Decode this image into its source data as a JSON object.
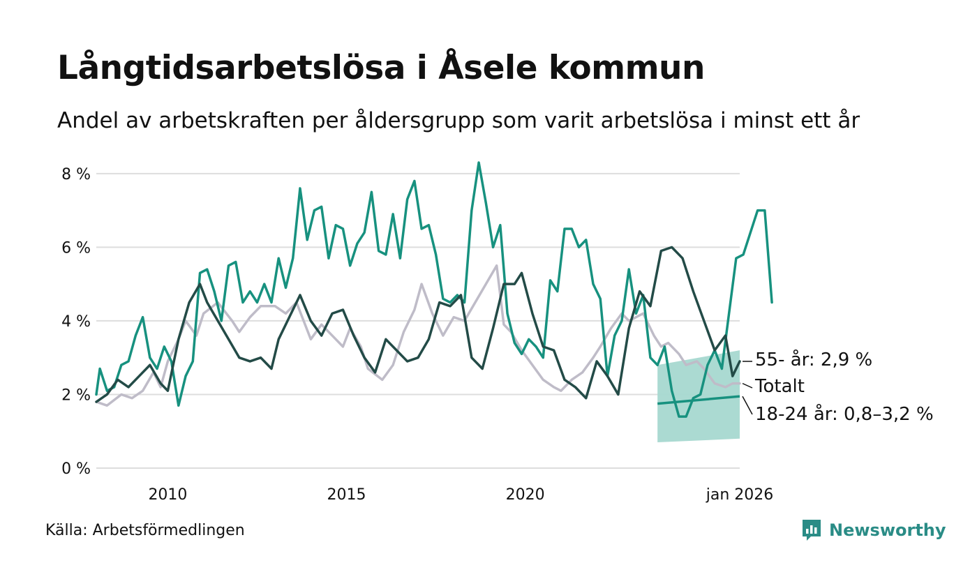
{
  "title": "Långtidsarbetslösa i Åsele kommun",
  "subtitle": "Andel av arbetskraften per åldersgrupp som varit arbetslösa i minst ett år",
  "source": "Källa: Arbetsförmedlingen",
  "brand": "Newsworthy",
  "colors": {
    "age_18_24": "#17917f",
    "age_55": "#234b47",
    "total": "#bfbcc8",
    "band": "#a6d8d0",
    "grid": "#dddddd",
    "brand": "#2a8c86"
  },
  "chart_data": {
    "type": "line",
    "ylim": [
      0,
      8.3
    ],
    "xlim": [
      2008.0,
      2026.0
    ],
    "y_ticks": [
      {
        "value": 0,
        "label": "0 %"
      },
      {
        "value": 2,
        "label": "2 %"
      },
      {
        "value": 4,
        "label": "4 %"
      },
      {
        "value": 6,
        "label": "6 %"
      },
      {
        "value": 8,
        "label": "8 %"
      }
    ],
    "x_ticks": [
      {
        "value": 2010,
        "label": "2010"
      },
      {
        "value": 2015,
        "label": "2015"
      },
      {
        "value": 2020,
        "label": "2020"
      },
      {
        "value": 2026,
        "label": "jan 2026"
      }
    ],
    "series": [
      {
        "name": "Totalt",
        "label": "Totalt",
        "color_key": "total",
        "points": [
          [
            2008.0,
            1.8
          ],
          [
            2008.3,
            1.7
          ],
          [
            2008.7,
            2.0
          ],
          [
            2009.0,
            1.9
          ],
          [
            2009.3,
            2.1
          ],
          [
            2009.6,
            2.6
          ],
          [
            2009.8,
            2.2
          ],
          [
            2010.0,
            2.9
          ],
          [
            2010.3,
            3.5
          ],
          [
            2010.5,
            4.0
          ],
          [
            2010.8,
            3.6
          ],
          [
            2011.0,
            4.2
          ],
          [
            2011.4,
            4.5
          ],
          [
            2011.8,
            4.0
          ],
          [
            2012.0,
            3.7
          ],
          [
            2012.3,
            4.1
          ],
          [
            2012.6,
            4.4
          ],
          [
            2013.0,
            4.4
          ],
          [
            2013.3,
            4.2
          ],
          [
            2013.6,
            4.5
          ],
          [
            2014.0,
            3.5
          ],
          [
            2014.3,
            3.9
          ],
          [
            2014.7,
            3.5
          ],
          [
            2014.9,
            3.3
          ],
          [
            2015.1,
            3.8
          ],
          [
            2015.4,
            3.3
          ],
          [
            2015.6,
            2.7
          ],
          [
            2016.0,
            2.4
          ],
          [
            2016.3,
            2.8
          ],
          [
            2016.6,
            3.7
          ],
          [
            2016.9,
            4.3
          ],
          [
            2017.1,
            5.0
          ],
          [
            2017.4,
            4.2
          ],
          [
            2017.7,
            3.6
          ],
          [
            2018.0,
            4.1
          ],
          [
            2018.3,
            4.0
          ],
          [
            2018.6,
            4.5
          ],
          [
            2018.9,
            5.0
          ],
          [
            2019.2,
            5.5
          ],
          [
            2019.4,
            3.9
          ],
          [
            2019.6,
            3.7
          ],
          [
            2019.9,
            3.2
          ],
          [
            2020.2,
            2.8
          ],
          [
            2020.5,
            2.4
          ],
          [
            2020.8,
            2.2
          ],
          [
            2021.0,
            2.1
          ],
          [
            2021.3,
            2.4
          ],
          [
            2021.6,
            2.6
          ],
          [
            2021.9,
            3.0
          ],
          [
            2022.1,
            3.3
          ],
          [
            2022.4,
            3.8
          ],
          [
            2022.7,
            4.2
          ],
          [
            2022.9,
            4.0
          ],
          [
            2023.3,
            4.2
          ],
          [
            2023.6,
            3.6
          ],
          [
            2023.8,
            3.3
          ],
          [
            2024.0,
            3.4
          ],
          [
            2024.3,
            3.1
          ],
          [
            2024.5,
            2.8
          ],
          [
            2024.8,
            2.9
          ],
          [
            2025.0,
            2.7
          ],
          [
            2025.3,
            2.3
          ],
          [
            2025.6,
            2.2
          ],
          [
            2025.8,
            2.3
          ],
          [
            2026.0,
            2.3
          ]
        ]
      },
      {
        "name": "18-24 år",
        "label": "18-24 år: 0,8–3,2 %",
        "color_key": "age_18_24",
        "points": [
          [
            2008.0,
            2.0
          ],
          [
            2008.1,
            2.7
          ],
          [
            2008.3,
            2.1
          ],
          [
            2008.5,
            2.2
          ],
          [
            2008.7,
            2.8
          ],
          [
            2008.9,
            2.9
          ],
          [
            2009.1,
            3.6
          ],
          [
            2009.3,
            4.1
          ],
          [
            2009.5,
            3.0
          ],
          [
            2009.7,
            2.7
          ],
          [
            2009.9,
            3.3
          ],
          [
            2010.1,
            2.9
          ],
          [
            2010.3,
            1.7
          ],
          [
            2010.5,
            2.5
          ],
          [
            2010.7,
            2.9
          ],
          [
            2010.9,
            5.3
          ],
          [
            2011.1,
            5.4
          ],
          [
            2011.3,
            4.8
          ],
          [
            2011.5,
            4.0
          ],
          [
            2011.7,
            5.5
          ],
          [
            2011.9,
            5.6
          ],
          [
            2012.1,
            4.5
          ],
          [
            2012.3,
            4.8
          ],
          [
            2012.5,
            4.5
          ],
          [
            2012.7,
            5.0
          ],
          [
            2012.9,
            4.5
          ],
          [
            2013.1,
            5.7
          ],
          [
            2013.3,
            4.9
          ],
          [
            2013.5,
            5.7
          ],
          [
            2013.7,
            7.6
          ],
          [
            2013.9,
            6.2
          ],
          [
            2014.1,
            7.0
          ],
          [
            2014.3,
            7.1
          ],
          [
            2014.5,
            5.7
          ],
          [
            2014.7,
            6.6
          ],
          [
            2014.9,
            6.5
          ],
          [
            2015.1,
            5.5
          ],
          [
            2015.3,
            6.1
          ],
          [
            2015.5,
            6.4
          ],
          [
            2015.7,
            7.5
          ],
          [
            2015.9,
            5.9
          ],
          [
            2016.1,
            5.8
          ],
          [
            2016.3,
            6.9
          ],
          [
            2016.5,
            5.7
          ],
          [
            2016.7,
            7.3
          ],
          [
            2016.9,
            7.8
          ],
          [
            2017.1,
            6.5
          ],
          [
            2017.3,
            6.6
          ],
          [
            2017.5,
            5.8
          ],
          [
            2017.7,
            4.6
          ],
          [
            2017.9,
            4.5
          ],
          [
            2018.1,
            4.7
          ],
          [
            2018.3,
            4.5
          ],
          [
            2018.5,
            7.0
          ],
          [
            2018.7,
            8.3
          ],
          [
            2018.9,
            7.2
          ],
          [
            2019.1,
            6.0
          ],
          [
            2019.3,
            6.6
          ],
          [
            2019.5,
            4.2
          ],
          [
            2019.7,
            3.4
          ],
          [
            2019.9,
            3.1
          ],
          [
            2020.1,
            3.5
          ],
          [
            2020.3,
            3.3
          ],
          [
            2020.5,
            3.0
          ],
          [
            2020.7,
            5.1
          ],
          [
            2020.9,
            4.8
          ],
          [
            2021.1,
            6.5
          ],
          [
            2021.3,
            6.5
          ],
          [
            2021.5,
            6.0
          ],
          [
            2021.7,
            6.2
          ],
          [
            2021.9,
            5.0
          ],
          [
            2022.1,
            4.6
          ],
          [
            2022.3,
            2.5
          ],
          [
            2022.5,
            3.6
          ],
          [
            2022.7,
            4.0
          ],
          [
            2022.9,
            5.4
          ],
          [
            2023.1,
            4.2
          ],
          [
            2023.3,
            4.7
          ],
          [
            2023.5,
            3.0
          ],
          [
            2023.7,
            2.8
          ],
          [
            2023.9,
            3.3
          ],
          [
            2024.1,
            2.1
          ],
          [
            2024.3,
            1.4
          ],
          [
            2024.5,
            1.4
          ],
          [
            2024.7,
            1.9
          ],
          [
            2024.9,
            2.0
          ],
          [
            2025.1,
            2.8
          ],
          [
            2025.3,
            3.2
          ],
          [
            2025.5,
            2.7
          ],
          [
            2025.7,
            4.2
          ],
          [
            2025.9,
            5.7
          ],
          [
            2026.1,
            5.8
          ],
          [
            2026.3,
            6.4
          ],
          [
            2026.5,
            7.0
          ],
          [
            2026.7,
            7.0
          ],
          [
            2026.9,
            4.5
          ]
        ]
      },
      {
        "name": "55- år",
        "label": "55- år: 2,9 %",
        "color_key": "age_55",
        "points": [
          [
            2008.0,
            1.8
          ],
          [
            2008.3,
            2.0
          ],
          [
            2008.6,
            2.4
          ],
          [
            2008.9,
            2.2
          ],
          [
            2009.2,
            2.5
          ],
          [
            2009.5,
            2.8
          ],
          [
            2009.8,
            2.3
          ],
          [
            2010.0,
            2.1
          ],
          [
            2010.3,
            3.5
          ],
          [
            2010.6,
            4.5
          ],
          [
            2010.9,
            5.0
          ],
          [
            2011.1,
            4.5
          ],
          [
            2011.4,
            4.0
          ],
          [
            2011.7,
            3.5
          ],
          [
            2012.0,
            3.0
          ],
          [
            2012.3,
            2.9
          ],
          [
            2012.6,
            3.0
          ],
          [
            2012.9,
            2.7
          ],
          [
            2013.1,
            3.5
          ],
          [
            2013.4,
            4.1
          ],
          [
            2013.7,
            4.7
          ],
          [
            2014.0,
            4.0
          ],
          [
            2014.3,
            3.6
          ],
          [
            2014.6,
            4.2
          ],
          [
            2014.9,
            4.3
          ],
          [
            2015.2,
            3.6
          ],
          [
            2015.5,
            3.0
          ],
          [
            2015.8,
            2.6
          ],
          [
            2016.1,
            3.5
          ],
          [
            2016.4,
            3.2
          ],
          [
            2016.7,
            2.9
          ],
          [
            2017.0,
            3.0
          ],
          [
            2017.3,
            3.5
          ],
          [
            2017.6,
            4.5
          ],
          [
            2017.9,
            4.4
          ],
          [
            2018.2,
            4.7
          ],
          [
            2018.5,
            3.0
          ],
          [
            2018.8,
            2.7
          ],
          [
            2019.1,
            3.8
          ],
          [
            2019.4,
            5.0
          ],
          [
            2019.7,
            5.0
          ],
          [
            2019.9,
            5.3
          ],
          [
            2020.2,
            4.2
          ],
          [
            2020.5,
            3.3
          ],
          [
            2020.8,
            3.2
          ],
          [
            2021.1,
            2.4
          ],
          [
            2021.4,
            2.2
          ],
          [
            2021.7,
            1.9
          ],
          [
            2022.0,
            2.9
          ],
          [
            2022.3,
            2.5
          ],
          [
            2022.6,
            2.0
          ],
          [
            2022.9,
            3.8
          ],
          [
            2023.2,
            4.8
          ],
          [
            2023.5,
            4.4
          ],
          [
            2023.8,
            5.9
          ],
          [
            2024.1,
            6.0
          ],
          [
            2024.4,
            5.7
          ],
          [
            2024.7,
            4.8
          ],
          [
            2025.0,
            4.0
          ],
          [
            2025.3,
            3.2
          ],
          [
            2025.6,
            3.6
          ],
          [
            2025.8,
            2.5
          ],
          [
            2026.0,
            2.9
          ]
        ]
      }
    ],
    "band": {
      "name": "18-24 år osäkerhetsintervall",
      "x_start": 2023.7,
      "x_end": 2026.0,
      "lower_start": 0.7,
      "lower_end": 0.8,
      "upper_start": 2.8,
      "upper_end": 3.2,
      "mid_start": 1.75,
      "mid_end": 1.95
    }
  }
}
